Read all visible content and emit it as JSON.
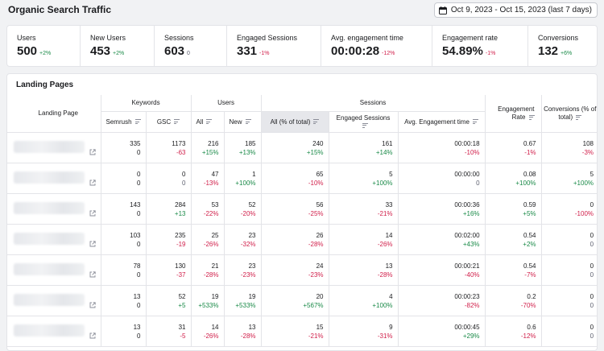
{
  "header": {
    "title": "Organic Search Traffic",
    "date_range": "Oct 9, 2023 - Oct 15, 2023 (last 7 days)"
  },
  "kpis": [
    {
      "label": "Users",
      "value": "500",
      "delta": "+2%",
      "tone": "pos"
    },
    {
      "label": "New Users",
      "value": "453",
      "delta": "+2%",
      "tone": "pos"
    },
    {
      "label": "Sessions",
      "value": "603",
      "delta": "0",
      "tone": "zero"
    },
    {
      "label": "Engaged Sessions",
      "value": "331",
      "delta": "-1%",
      "tone": "neg"
    },
    {
      "label": "Avg. engagement time",
      "value": "00:00:28",
      "delta": "-12%",
      "tone": "neg"
    },
    {
      "label": "Engagement rate",
      "value": "54.89%",
      "delta": "-1%",
      "tone": "neg"
    },
    {
      "label": "Conversions",
      "value": "132",
      "delta": "+6%",
      "tone": "pos"
    }
  ],
  "landing": {
    "title": "Landing Pages",
    "groups": {
      "keywords": "Keywords",
      "users": "Users",
      "sessions": "Sessions"
    },
    "columns": {
      "landing_page": "Landing Page",
      "semrush": "Semrush",
      "gsc": "GSC",
      "all": "All",
      "new": "New",
      "all_total": "All (% of total)",
      "engaged_sessions": "Engaged Sessions",
      "avg_time": "Avg. Engagement time",
      "engagement_rate": "Engagement Rate",
      "conversions": "Conversions (% of total)"
    },
    "rows": [
      {
        "semrush": [
          "335",
          "0"
        ],
        "gsc": [
          "1173",
          "-63"
        ],
        "all": [
          "216",
          "+15%"
        ],
        "new": [
          "185",
          "+13%"
        ],
        "total": [
          "240",
          "+15%"
        ],
        "engaged": [
          "161",
          "+14%"
        ],
        "time": [
          "00:00:18",
          "-10%"
        ],
        "rate": [
          "0.67",
          "-1%"
        ],
        "conv": [
          "108",
          "-3%"
        ]
      },
      {
        "semrush": [
          "0",
          "0"
        ],
        "gsc": [
          "0",
          "0"
        ],
        "all": [
          "47",
          "-13%"
        ],
        "new": [
          "1",
          "+100%"
        ],
        "total": [
          "65",
          "-10%"
        ],
        "engaged": [
          "5",
          "+100%"
        ],
        "time": [
          "00:00:00",
          "0"
        ],
        "rate": [
          "0.08",
          "+100%"
        ],
        "conv": [
          "5",
          "+100%"
        ]
      },
      {
        "semrush": [
          "143",
          "0"
        ],
        "gsc": [
          "284",
          "+13"
        ],
        "all": [
          "53",
          "-22%"
        ],
        "new": [
          "52",
          "-20%"
        ],
        "total": [
          "56",
          "-25%"
        ],
        "engaged": [
          "33",
          "-21%"
        ],
        "time": [
          "00:00:36",
          "+16%"
        ],
        "rate": [
          "0.59",
          "+5%"
        ],
        "conv": [
          "0",
          "-100%"
        ]
      },
      {
        "semrush": [
          "103",
          "0"
        ],
        "gsc": [
          "235",
          "-19"
        ],
        "all": [
          "25",
          "-26%"
        ],
        "new": [
          "23",
          "-32%"
        ],
        "total": [
          "26",
          "-28%"
        ],
        "engaged": [
          "14",
          "-26%"
        ],
        "time": [
          "00:02:00",
          "+43%"
        ],
        "rate": [
          "0.54",
          "+2%"
        ],
        "conv": [
          "0",
          "0"
        ]
      },
      {
        "semrush": [
          "78",
          "0"
        ],
        "gsc": [
          "130",
          "-37"
        ],
        "all": [
          "21",
          "-28%"
        ],
        "new": [
          "23",
          "-23%"
        ],
        "total": [
          "24",
          "-23%"
        ],
        "engaged": [
          "13",
          "-28%"
        ],
        "time": [
          "00:00:21",
          "-40%"
        ],
        "rate": [
          "0.54",
          "-7%"
        ],
        "conv": [
          "0",
          "0"
        ]
      },
      {
        "semrush": [
          "13",
          "0"
        ],
        "gsc": [
          "52",
          "+5"
        ],
        "all": [
          "19",
          "+533%"
        ],
        "new": [
          "19",
          "+533%"
        ],
        "total": [
          "20",
          "+567%"
        ],
        "engaged": [
          "4",
          "+100%"
        ],
        "time": [
          "00:00:23",
          "-82%"
        ],
        "rate": [
          "0.2",
          "-70%"
        ],
        "conv": [
          "0",
          "0"
        ]
      },
      {
        "semrush": [
          "13",
          "0"
        ],
        "gsc": [
          "31",
          "-5"
        ],
        "all": [
          "14",
          "-26%"
        ],
        "new": [
          "13",
          "-28%"
        ],
        "total": [
          "15",
          "-21%"
        ],
        "engaged": [
          "9",
          "-31%"
        ],
        "time": [
          "00:00:45",
          "+29%"
        ],
        "rate": [
          "0.6",
          "-12%"
        ],
        "conv": [
          "0",
          "0"
        ]
      }
    ]
  },
  "colors": {
    "positive": "#1a8a48",
    "negative": "#d1204b",
    "link": "#006dca"
  },
  "icons": {
    "date_button": "calendar-icon",
    "row_link": "external-link-icon",
    "column_filter": "filter-icon"
  }
}
